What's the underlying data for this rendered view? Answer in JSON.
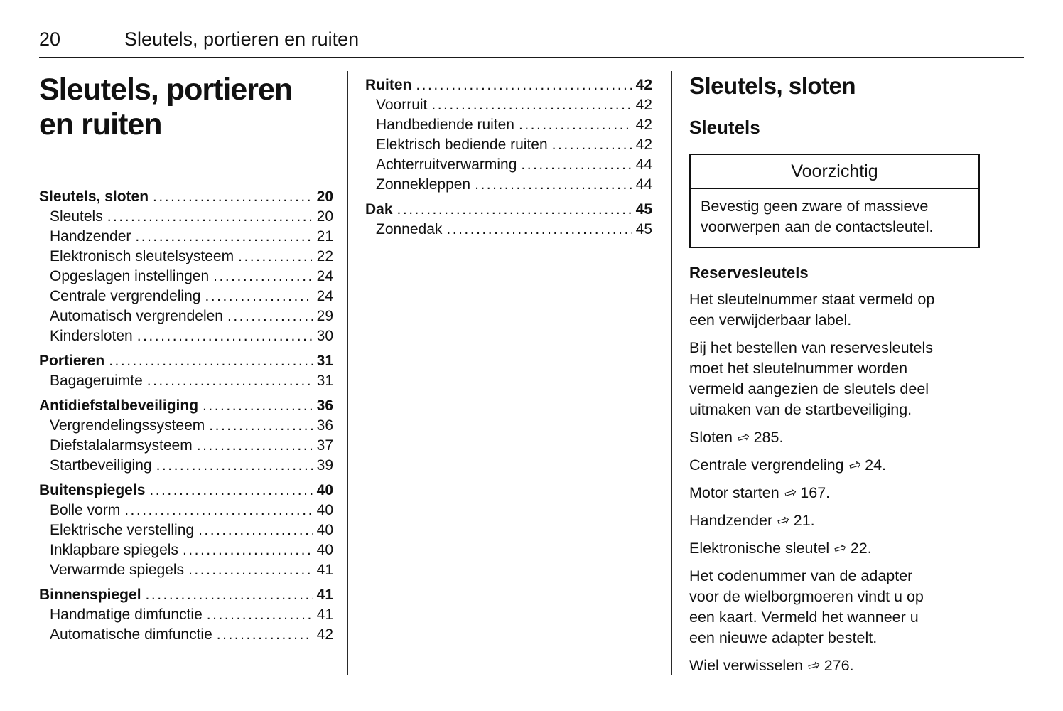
{
  "page": {
    "number": "20",
    "running_title": "Sleutels, portieren en ruiten"
  },
  "left_column": {
    "title_lines": [
      "Sleutels, portieren",
      "en ruiten"
    ],
    "toc": [
      {
        "label": "Sleutels, sloten",
        "page": "20",
        "level": 1
      },
      {
        "label": "Sleutels",
        "page": "20",
        "level": 2
      },
      {
        "label": "Handzender",
        "page": "21",
        "level": 2
      },
      {
        "label": "Elektronisch sleutelsysteem",
        "page": "22",
        "level": 2
      },
      {
        "label": "Opgeslagen instellingen",
        "page": "24",
        "level": 2
      },
      {
        "label": "Centrale vergrendeling",
        "page": "24",
        "level": 2
      },
      {
        "label": "Automatisch vergrendelen",
        "page": "29",
        "level": 2
      },
      {
        "label": "Kindersloten",
        "page": "30",
        "level": 2
      },
      {
        "label": "Portieren",
        "page": "31",
        "level": 1,
        "group_start": true
      },
      {
        "label": "Bagageruimte",
        "page": "31",
        "level": 2
      },
      {
        "label": "Antidiefstalbeveiliging",
        "page": "36",
        "level": 1,
        "group_start": true
      },
      {
        "label": "Vergrendelingssysteem",
        "page": "36",
        "level": 2
      },
      {
        "label": "Diefstalalarmsysteem",
        "page": "37",
        "level": 2
      },
      {
        "label": "Startbeveiliging",
        "page": "39",
        "level": 2
      },
      {
        "label": "Buitenspiegels",
        "page": "40",
        "level": 1,
        "group_start": true
      },
      {
        "label": "Bolle vorm",
        "page": "40",
        "level": 2
      },
      {
        "label": "Elektrische verstelling",
        "page": "40",
        "level": 2
      },
      {
        "label": "Inklapbare spiegels",
        "page": "40",
        "level": 2
      },
      {
        "label": "Verwarmde spiegels",
        "page": "41",
        "level": 2
      },
      {
        "label": "Binnenspiegel",
        "page": "41",
        "level": 1,
        "group_start": true
      },
      {
        "label": "Handmatige dimfunctie",
        "page": "41",
        "level": 2
      },
      {
        "label": "Automatische dimfunctie",
        "page": "42",
        "level": 2
      }
    ]
  },
  "middle_column": {
    "toc": [
      {
        "label": "Ruiten",
        "page": "42",
        "level": 1
      },
      {
        "label": "Voorruit",
        "page": "42",
        "level": 2
      },
      {
        "label": "Handbediende ruiten",
        "page": "42",
        "level": 2
      },
      {
        "label": "Elektrisch bediende ruiten",
        "page": "42",
        "level": 2
      },
      {
        "label": "Achterruitverwarming",
        "page": "44",
        "level": 2
      },
      {
        "label": "Zonnekleppen",
        "page": "44",
        "level": 2
      },
      {
        "label": "Dak",
        "page": "45",
        "level": 1,
        "group_start": true
      },
      {
        "label": "Zonnedak",
        "page": "45",
        "level": 2
      }
    ]
  },
  "right_column": {
    "section_title": "Sleutels, sloten",
    "subsection_title": "Sleutels",
    "caution": {
      "title": "Voorzichtig",
      "body": "Bevestig geen zware of massieve\nvoorwerpen aan de contactsleutel."
    },
    "subheading": "Reservesleutels",
    "blocks": [
      {
        "type": "text",
        "text": "Het sleutelnummer staat vermeld op\neen verwijderbaar label."
      },
      {
        "type": "text",
        "text": "Bij het bestellen van reservesleutels\nmoet het sleutelnummer worden\nvermeld aangezien de sleutels deel\nuitmaken van de startbeveiliging."
      },
      {
        "type": "ref",
        "label": "Sloten",
        "page": "285."
      },
      {
        "type": "ref",
        "label": "Centrale vergrendeling",
        "page": "24."
      },
      {
        "type": "ref",
        "label": "Motor starten",
        "page": "167."
      },
      {
        "type": "ref",
        "label": "Handzender",
        "page": "21."
      },
      {
        "type": "ref",
        "label": "Elektronische sleutel",
        "page": "22."
      },
      {
        "type": "text",
        "text": "Het codenummer van de adapter\nvoor de wielborgmoeren vindt u op\neen kaart. Vermeld het wanneer u\neen nieuwe adapter bestelt."
      },
      {
        "type": "ref",
        "label": "Wiel verwisselen",
        "page": "276."
      }
    ]
  },
  "icons": {
    "page_ref_arrow": "⇨"
  },
  "colors": {
    "text": "#111111",
    "background": "#ffffff"
  }
}
